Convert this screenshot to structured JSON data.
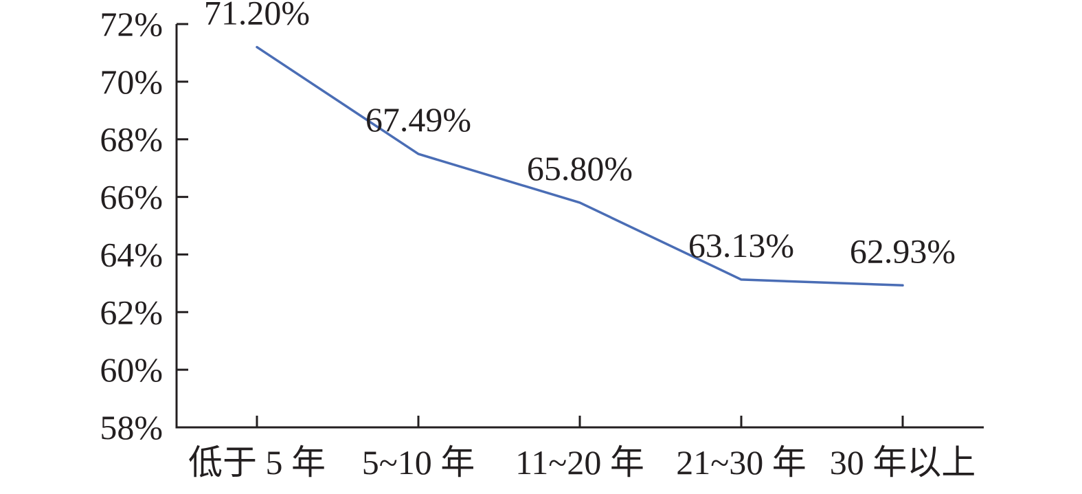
{
  "chart_data": {
    "type": "line",
    "categories": [
      "低于 5 年",
      "5~10 年",
      "11~20 年",
      "21~30 年",
      "30 年以上"
    ],
    "series": [
      {
        "values": [
          71.2,
          67.49,
          65.8,
          63.13,
          62.93
        ],
        "labels": [
          "71.20%",
          "67.49%",
          "65.80%",
          "63.13%",
          "62.93%"
        ],
        "color": "#4a6db5"
      }
    ],
    "yticks": [
      "58%",
      "60%",
      "62%",
      "64%",
      "66%",
      "68%",
      "70%",
      "72%"
    ],
    "ylim": [
      58,
      72
    ],
    "grid": false,
    "legend": "none",
    "title": "",
    "xlabel": "",
    "ylabel": ""
  }
}
